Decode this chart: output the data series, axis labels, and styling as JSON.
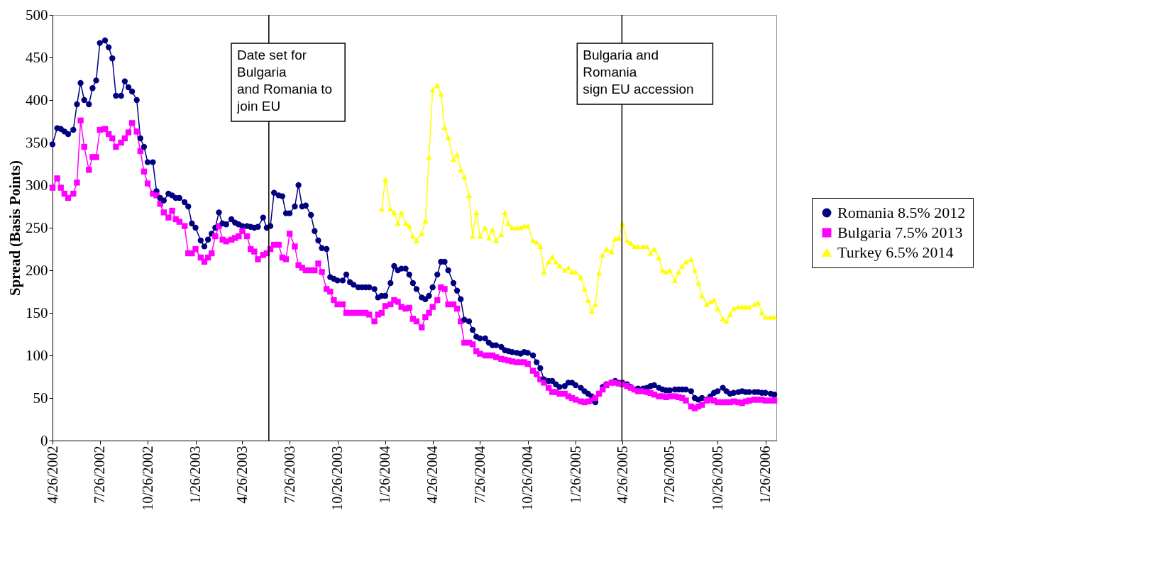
{
  "chart_data": {
    "type": "line",
    "ylabel": "Spread (Basis Points)",
    "ylim": [
      0,
      500
    ],
    "yticks": [
      0,
      50,
      100,
      150,
      200,
      250,
      300,
      350,
      400,
      450,
      500
    ],
    "xlim": [
      "2002-04-26",
      "2006-02-16"
    ],
    "xticks": [
      {
        "value": "2002-04-26",
        "label": "4/26/2002"
      },
      {
        "value": "2002-07-26",
        "label": "7/26/2002"
      },
      {
        "value": "2002-10-26",
        "label": "10/26/2002"
      },
      {
        "value": "2003-01-26",
        "label": "1/26/2003"
      },
      {
        "value": "2003-04-26",
        "label": "4/26/2003"
      },
      {
        "value": "2003-07-26",
        "label": "7/26/2003"
      },
      {
        "value": "2003-10-26",
        "label": "10/26/2003"
      },
      {
        "value": "2004-01-26",
        "label": "1/26/2004"
      },
      {
        "value": "2004-04-26",
        "label": "4/26/2004"
      },
      {
        "value": "2004-07-26",
        "label": "7/26/2004"
      },
      {
        "value": "2004-10-26",
        "label": "10/26/2004"
      },
      {
        "value": "2005-01-26",
        "label": "1/26/2005"
      },
      {
        "value": "2005-04-26",
        "label": "4/26/2005"
      },
      {
        "value": "2005-07-26",
        "label": "7/26/2005"
      },
      {
        "value": "2005-10-26",
        "label": "10/26/2005"
      },
      {
        "value": "2006-01-26",
        "label": "1/26/2006"
      }
    ],
    "x": [
      "2002-04-26",
      "2002-05-05",
      "2002-05-12",
      "2002-05-19",
      "2002-05-26",
      "2002-06-05",
      "2002-06-12",
      "2002-06-19",
      "2002-06-26",
      "2002-07-05",
      "2002-07-12",
      "2002-07-19",
      "2002-07-26",
      "2002-08-05",
      "2002-08-12",
      "2002-08-19",
      "2002-08-26",
      "2002-09-05",
      "2002-09-12",
      "2002-09-19",
      "2002-09-26",
      "2002-10-05",
      "2002-10-12",
      "2002-10-19",
      "2002-10-26",
      "2002-11-05",
      "2002-11-12",
      "2002-11-19",
      "2002-11-26",
      "2002-12-05",
      "2002-12-12",
      "2002-12-19",
      "2002-12-26",
      "2003-01-05",
      "2003-01-12",
      "2003-01-19",
      "2003-01-26",
      "2003-02-05",
      "2003-02-12",
      "2003-02-19",
      "2003-02-26",
      "2003-03-05",
      "2003-03-12",
      "2003-03-19",
      "2003-03-26",
      "2003-04-05",
      "2003-04-12",
      "2003-04-19",
      "2003-04-26",
      "2003-05-05",
      "2003-05-12",
      "2003-05-19",
      "2003-05-26",
      "2003-06-05",
      "2003-06-12",
      "2003-06-19",
      "2003-06-26",
      "2003-07-05",
      "2003-07-12",
      "2003-07-19",
      "2003-07-26",
      "2003-08-05",
      "2003-08-12",
      "2003-08-19",
      "2003-08-26",
      "2003-09-05",
      "2003-09-12",
      "2003-09-19",
      "2003-09-26",
      "2003-10-05",
      "2003-10-12",
      "2003-10-19",
      "2003-10-26",
      "2003-11-05",
      "2003-11-12",
      "2003-11-19",
      "2003-11-26",
      "2003-12-05",
      "2003-12-12",
      "2003-12-19",
      "2003-12-26",
      "2004-01-05",
      "2004-01-12",
      "2004-01-19",
      "2004-01-26",
      "2004-02-05",
      "2004-02-12",
      "2004-02-19",
      "2004-02-26",
      "2004-03-05",
      "2004-03-12",
      "2004-03-19",
      "2004-03-26",
      "2004-04-05",
      "2004-04-12",
      "2004-04-19",
      "2004-04-26",
      "2004-05-05",
      "2004-05-12",
      "2004-05-19",
      "2004-05-26",
      "2004-06-05",
      "2004-06-12",
      "2004-06-19",
      "2004-06-26",
      "2004-07-05",
      "2004-07-12",
      "2004-07-19",
      "2004-07-26",
      "2004-08-05",
      "2004-08-12",
      "2004-08-19",
      "2004-08-26",
      "2004-09-05",
      "2004-09-12",
      "2004-09-19",
      "2004-09-26",
      "2004-10-05",
      "2004-10-12",
      "2004-10-19",
      "2004-10-26",
      "2004-11-05",
      "2004-11-12",
      "2004-11-19",
      "2004-11-26",
      "2004-12-05",
      "2004-12-12",
      "2004-12-19",
      "2004-12-26",
      "2005-01-05",
      "2005-01-12",
      "2005-01-19",
      "2005-01-26",
      "2005-02-05",
      "2005-02-12",
      "2005-02-19",
      "2005-02-26",
      "2005-03-05",
      "2005-03-12",
      "2005-03-19",
      "2005-03-26",
      "2005-04-05",
      "2005-04-12",
      "2005-04-19",
      "2005-04-26",
      "2005-05-05",
      "2005-05-12",
      "2005-05-19",
      "2005-05-26",
      "2005-06-05",
      "2005-06-12",
      "2005-06-19",
      "2005-06-26",
      "2005-07-05",
      "2005-07-12",
      "2005-07-19",
      "2005-07-26",
      "2005-08-05",
      "2005-08-12",
      "2005-08-19",
      "2005-08-26",
      "2005-09-05",
      "2005-09-12",
      "2005-09-19",
      "2005-09-26",
      "2005-10-05",
      "2005-10-12",
      "2005-10-19",
      "2005-10-26",
      "2005-11-05",
      "2005-11-12",
      "2005-11-19",
      "2005-11-26",
      "2005-12-05",
      "2005-12-12",
      "2005-12-19",
      "2005-12-26",
      "2006-01-05",
      "2006-01-12",
      "2006-01-19",
      "2006-01-26",
      "2006-02-05",
      "2006-02-12"
    ],
    "series": [
      {
        "name": "Romania 8.5% 2012",
        "color": "#000080",
        "marker": "circle",
        "values": [
          348,
          367,
          366,
          363,
          360,
          365,
          395,
          420,
          400,
          395,
          414,
          423,
          467,
          470,
          462,
          449,
          405,
          405,
          422,
          415,
          410,
          400,
          355,
          345,
          327,
          327,
          293,
          285,
          282,
          290,
          288,
          285,
          285,
          280,
          275,
          255,
          250,
          235,
          228,
          236,
          243,
          250,
          268,
          255,
          254,
          260,
          256,
          254,
          252,
          252,
          251,
          250,
          251,
          262,
          250,
          252,
          291,
          288,
          287,
          267,
          267,
          275,
          300,
          275,
          276,
          265,
          246,
          235,
          226,
          225,
          192,
          190,
          188,
          188,
          195,
          186,
          183,
          180,
          180,
          180,
          180,
          178,
          168,
          170,
          170,
          185,
          205,
          200,
          202,
          202,
          195,
          185,
          178,
          168,
          166,
          170,
          180,
          195,
          210,
          210,
          200,
          185,
          176,
          166,
          142,
          140,
          130,
          122,
          120,
          120,
          115,
          112,
          112,
          110,
          106,
          105,
          104,
          103,
          102,
          104,
          103,
          100,
          92,
          85,
          72,
          70,
          70,
          66,
          63,
          64,
          68,
          68,
          65,
          62,
          58,
          55,
          52,
          45,
          55,
          63,
          66,
          68,
          70,
          68,
          68,
          66,
          63,
          60,
          61,
          61,
          62,
          64,
          65,
          62,
          60,
          59,
          59,
          60,
          60,
          60,
          60,
          58,
          50,
          48,
          50,
          48,
          52,
          56,
          58,
          62,
          58,
          55,
          56,
          57,
          58,
          57,
          57,
          57,
          57,
          56,
          56,
          55,
          54
        ]
      },
      {
        "name": "Bulgaria 7.5% 2013",
        "color": "#ff00ff",
        "marker": "square",
        "values": [
          297,
          308,
          297,
          290,
          285,
          290,
          303,
          376,
          345,
          318,
          333,
          333,
          365,
          366,
          360,
          355,
          345,
          350,
          355,
          362,
          373,
          363,
          340,
          316,
          302,
          290,
          288,
          278,
          268,
          262,
          270,
          260,
          257,
          252,
          220,
          220,
          225,
          215,
          210,
          215,
          220,
          240,
          252,
          236,
          234,
          236,
          238,
          240,
          246,
          240,
          225,
          222,
          213,
          218,
          220,
          225,
          230,
          230,
          215,
          213,
          243,
          228,
          206,
          203,
          200,
          200,
          200,
          208,
          198,
          178,
          175,
          165,
          160,
          160,
          150,
          150,
          150,
          150,
          150,
          150,
          148,
          140,
          148,
          150,
          158,
          160,
          165,
          163,
          157,
          155,
          156,
          143,
          140,
          133,
          145,
          150,
          157,
          165,
          180,
          178,
          160,
          160,
          155,
          140,
          115,
          115,
          113,
          105,
          102,
          100,
          100,
          100,
          98,
          96,
          95,
          94,
          93,
          92,
          92,
          92,
          90,
          82,
          78,
          72,
          68,
          62,
          57,
          57,
          55,
          55,
          52,
          50,
          48,
          46,
          45,
          46,
          47,
          50,
          55,
          60,
          65,
          68,
          68,
          67,
          66,
          64,
          62,
          60,
          58,
          58,
          57,
          56,
          54,
          52,
          52,
          51,
          52,
          52,
          51,
          50,
          47,
          40,
          38,
          40,
          42,
          47,
          48,
          47,
          45,
          45,
          45,
          45,
          46,
          45,
          44,
          46,
          47,
          48,
          48,
          48,
          47,
          47,
          47
        ]
      },
      {
        "name": "Turkey 6.5% 2014",
        "color": "#ffff00",
        "marker": "triangle",
        "values": [
          null,
          null,
          null,
          null,
          null,
          null,
          null,
          null,
          null,
          null,
          null,
          null,
          null,
          null,
          null,
          null,
          null,
          null,
          null,
          null,
          null,
          null,
          null,
          null,
          null,
          null,
          null,
          null,
          null,
          null,
          null,
          null,
          null,
          null,
          null,
          null,
          null,
          null,
          null,
          null,
          null,
          null,
          null,
          null,
          null,
          null,
          null,
          null,
          null,
          null,
          null,
          null,
          null,
          null,
          null,
          null,
          null,
          null,
          null,
          null,
          null,
          null,
          null,
          null,
          null,
          null,
          null,
          null,
          null,
          null,
          null,
          null,
          null,
          null,
          null,
          null,
          null,
          null,
          null,
          null,
          null,
          null,
          null,
          272,
          307,
          272,
          268,
          255,
          268,
          255,
          252,
          240,
          235,
          243,
          258,
          333,
          412,
          417,
          407,
          368,
          356,
          330,
          336,
          318,
          310,
          288,
          240,
          268,
          240,
          250,
          238,
          248,
          235,
          242,
          268,
          255,
          250,
          250,
          250,
          252,
          252,
          235,
          233,
          228,
          198,
          210,
          216,
          210,
          205,
          200,
          203,
          198,
          198,
          192,
          178,
          165,
          152,
          160,
          197,
          218,
          225,
          222,
          237,
          238,
          255,
          235,
          232,
          228,
          228,
          228,
          228,
          220,
          225,
          215,
          200,
          198,
          200,
          188,
          198,
          205,
          210,
          213,
          200,
          185,
          170,
          160,
          163,
          165,
          155,
          143,
          140,
          148,
          155,
          157,
          157,
          157,
          157,
          160,
          162,
          150,
          145,
          145,
          145
        ]
      }
    ],
    "ref_lines": [
      {
        "axis": "x",
        "value": "2003-06-16",
        "label": "Date set for\nBulgaria\nand Romania to\njoin EU"
      },
      {
        "axis": "x",
        "value": "2005-04-25",
        "label": "Bulgaria and\nRomania\nsign EU accession"
      }
    ],
    "legend": "right"
  }
}
